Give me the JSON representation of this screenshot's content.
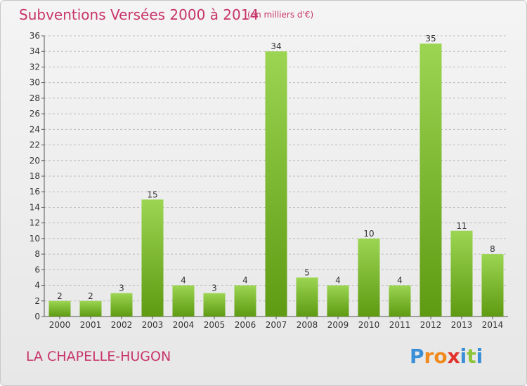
{
  "title": "Subventions Versées 2000 à 2014",
  "units_note": "(en milliers d'€)",
  "commune": "LA CHAPELLE-HUGON",
  "logo": {
    "text": "Proxiti"
  },
  "colors": {
    "title": "#c8346a",
    "bar_light": "#9bd552",
    "bar_dark": "#5e9a12",
    "grid": "#bdbdbd"
  },
  "chart_data": {
    "type": "bar",
    "categories": [
      "2000",
      "2001",
      "2002",
      "2003",
      "2004",
      "2005",
      "2006",
      "2007",
      "2008",
      "2009",
      "2010",
      "2011",
      "2012",
      "2013",
      "2014"
    ],
    "values": [
      2,
      2,
      3,
      15,
      4,
      3,
      4,
      34,
      5,
      4,
      10,
      4,
      35,
      11,
      8
    ],
    "ylim": [
      0,
      36
    ],
    "yticks": [
      0,
      2,
      4,
      6,
      8,
      10,
      12,
      14,
      16,
      18,
      20,
      22,
      24,
      26,
      28,
      30,
      32,
      34,
      36
    ],
    "grid": "horizontal dashed",
    "data_labels": true
  }
}
